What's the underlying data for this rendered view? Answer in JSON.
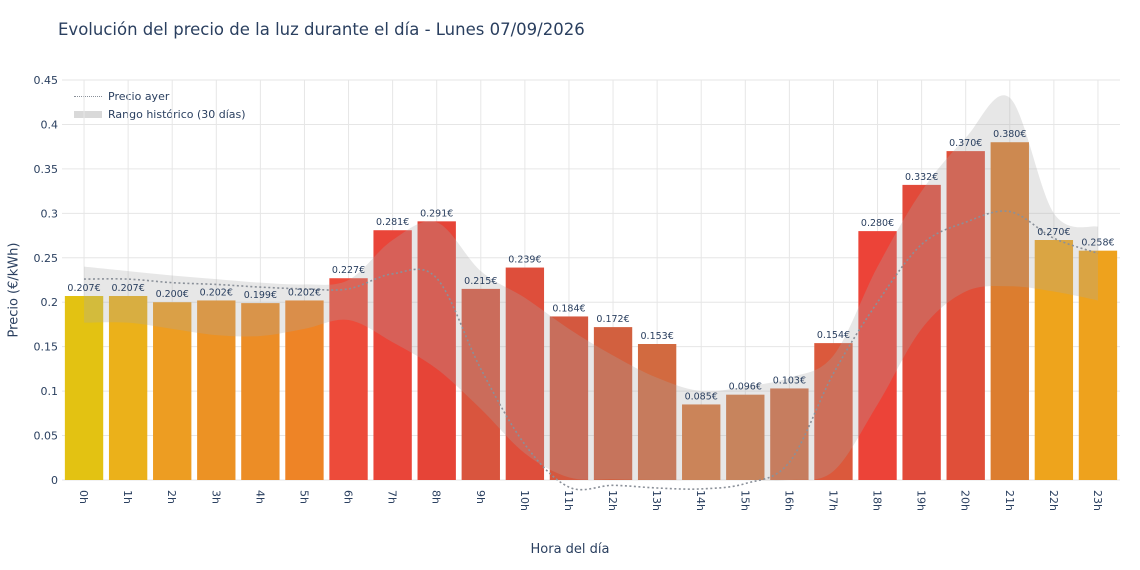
{
  "chart_data": {
    "type": "bar",
    "title": "Evolución del precio de la luz durante el día - Lunes 07/09/2026",
    "xlabel": "Hora del día",
    "ylabel": "Precio (€/kWh)",
    "ylim": [
      0,
      0.45
    ],
    "yticks": [
      "0",
      "0.05",
      "0.1",
      "0.15",
      "0.2",
      "0.25",
      "0.3",
      "0.35",
      "0.4",
      "0.45"
    ],
    "grid": true,
    "legend_position": "top-left",
    "categories": [
      "0h",
      "1h",
      "2h",
      "3h",
      "4h",
      "5h",
      "6h",
      "7h",
      "8h",
      "9h",
      "10h",
      "11h",
      "12h",
      "13h",
      "14h",
      "15h",
      "16h",
      "17h",
      "18h",
      "19h",
      "20h",
      "21h",
      "22h",
      "23h"
    ],
    "series": [
      {
        "name": "",
        "kind": "bar",
        "values": [
          0.207,
          0.207,
          0.2,
          0.202,
          0.199,
          0.202,
          0.227,
          0.281,
          0.291,
          0.215,
          0.239,
          0.184,
          0.172,
          0.153,
          0.085,
          0.096,
          0.103,
          0.154,
          0.28,
          0.332,
          0.37,
          0.38,
          0.27,
          0.258
        ],
        "data_labels": [
          "0.207€",
          "0.207€",
          "0.200€",
          "0.202€",
          "0.199€",
          "0.202€",
          "0.227€",
          "0.281€",
          "0.291€",
          "0.215€",
          "0.239€",
          "0.184€",
          "0.172€",
          "0.153€",
          "0.085€",
          "0.096€",
          "0.103€",
          "0.154€",
          "0.280€",
          "0.332€",
          "0.370€",
          "0.380€",
          "0.270€",
          "0.258€"
        ],
        "colors": [
          "#e3c212",
          "#ebb11a",
          "#ed9d22",
          "#ec9224",
          "#ec8d26",
          "#ee8426",
          "#ed4b3a",
          "#e94539",
          "#e64437",
          "#d9553e",
          "#de4e3b",
          "#d4583f",
          "#d2603f",
          "#d26a40",
          "#d8763b",
          "#d37641",
          "#d16c43",
          "#db593c",
          "#ec4338",
          "#e24a3a",
          "#e04f39",
          "#dc7d2f",
          "#eea41c",
          "#eea21d"
        ]
      },
      {
        "name": "Precio ayer",
        "kind": "dotted-line",
        "color": "#8a9099",
        "values": [
          0.226,
          0.226,
          0.222,
          0.22,
          0.217,
          0.215,
          0.215,
          0.232,
          0.227,
          0.125,
          0.04,
          -0.008,
          -0.006,
          -0.009,
          -0.01,
          -0.004,
          0.02,
          0.12,
          0.2,
          0.265,
          0.29,
          0.302,
          0.272,
          0.255
        ]
      },
      {
        "name": "Rango histórico (30 días)",
        "kind": "band",
        "color": "#d9d9d9",
        "lower": [
          0.177,
          0.177,
          0.17,
          0.163,
          0.162,
          0.17,
          0.18,
          0.155,
          0.125,
          0.08,
          0.03,
          0.003,
          0.001,
          0.0,
          0.0,
          0.0,
          0.0,
          0.01,
          0.085,
          0.17,
          0.212,
          0.218,
          0.212,
          0.202
        ],
        "upper": [
          0.24,
          0.235,
          0.23,
          0.226,
          0.222,
          0.22,
          0.225,
          0.27,
          0.29,
          0.235,
          0.205,
          0.17,
          0.14,
          0.115,
          0.1,
          0.105,
          0.115,
          0.14,
          0.24,
          0.325,
          0.385,
          0.43,
          0.3,
          0.285
        ]
      }
    ]
  }
}
